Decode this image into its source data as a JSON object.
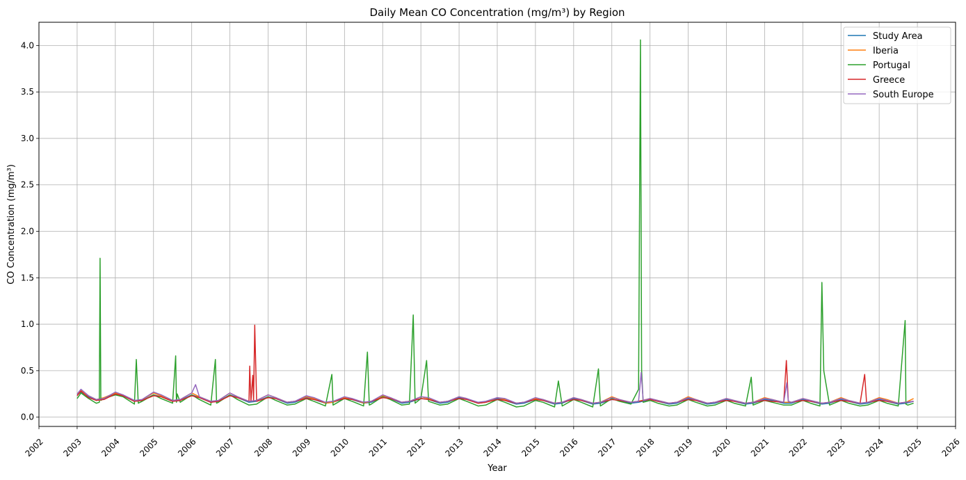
{
  "chart_data": {
    "type": "line",
    "title": "Daily Mean CO Concentration (mg/m³) by Region",
    "xlabel": "Year",
    "ylabel": "CO Concentration (mg/m³)",
    "xlim": [
      2002.0,
      2026.0
    ],
    "ylim": [
      -0.1,
      4.25
    ],
    "xticks": [
      "2002",
      "2003",
      "2004",
      "2005",
      "2006",
      "2007",
      "2008",
      "2009",
      "2010",
      "2011",
      "2012",
      "2013",
      "2014",
      "2015",
      "2016",
      "2017",
      "2018",
      "2019",
      "2020",
      "2021",
      "2022",
      "2023",
      "2024",
      "2025",
      "2026"
    ],
    "yticks": [
      "0.0",
      "0.5",
      "1.0",
      "1.5",
      "2.0",
      "2.5",
      "3.0",
      "3.5",
      "4.0"
    ],
    "grid": true,
    "legend_position": "top-right",
    "series": [
      {
        "name": "Study Area",
        "color": "#1f77b4",
        "x": [
          2003.0,
          2003.1,
          2003.3,
          2003.5,
          2003.7,
          2004.0,
          2004.2,
          2004.5,
          2004.7,
          2005.0,
          2005.2,
          2005.5,
          2005.7,
          2006.0,
          2006.2,
          2006.5,
          2006.7,
          2007.0,
          2007.2,
          2007.5,
          2007.7,
          2008.0,
          2008.2,
          2008.5,
          2008.7,
          2009.0,
          2009.2,
          2009.5,
          2009.7,
          2010.0,
          2010.2,
          2010.5,
          2010.7,
          2011.0,
          2011.2,
          2011.5,
          2011.7,
          2012.0,
          2012.2,
          2012.5,
          2012.7,
          2013.0,
          2013.2,
          2013.5,
          2013.7,
          2014.0,
          2014.2,
          2014.5,
          2014.7,
          2015.0,
          2015.2,
          2015.5,
          2015.7,
          2016.0,
          2016.2,
          2016.5,
          2016.7,
          2017.0,
          2017.2,
          2017.5,
          2017.7,
          2018.0,
          2018.2,
          2018.5,
          2018.7,
          2019.0,
          2019.2,
          2019.5,
          2019.7,
          2020.0,
          2020.2,
          2020.5,
          2020.7,
          2021.0,
          2021.2,
          2021.5,
          2021.7,
          2022.0,
          2022.2,
          2022.5,
          2022.7,
          2023.0,
          2023.2,
          2023.5,
          2023.7,
          2024.0,
          2024.2,
          2024.5,
          2024.7,
          2024.9
        ],
        "y": [
          0.24,
          0.27,
          0.22,
          0.18,
          0.2,
          0.25,
          0.23,
          0.17,
          0.18,
          0.24,
          0.22,
          0.17,
          0.18,
          0.24,
          0.21,
          0.16,
          0.17,
          0.24,
          0.21,
          0.16,
          0.17,
          0.22,
          0.2,
          0.15,
          0.16,
          0.21,
          0.19,
          0.15,
          0.16,
          0.2,
          0.19,
          0.15,
          0.16,
          0.22,
          0.2,
          0.15,
          0.16,
          0.2,
          0.19,
          0.15,
          0.16,
          0.21,
          0.19,
          0.15,
          0.16,
          0.2,
          0.18,
          0.14,
          0.15,
          0.19,
          0.18,
          0.14,
          0.15,
          0.2,
          0.18,
          0.14,
          0.15,
          0.19,
          0.18,
          0.15,
          0.16,
          0.19,
          0.17,
          0.14,
          0.15,
          0.2,
          0.18,
          0.14,
          0.15,
          0.19,
          0.17,
          0.14,
          0.15,
          0.19,
          0.18,
          0.15,
          0.15,
          0.19,
          0.17,
          0.14,
          0.15,
          0.19,
          0.17,
          0.14,
          0.15,
          0.19,
          0.17,
          0.14,
          0.15,
          0.17
        ]
      },
      {
        "name": "Iberia",
        "color": "#ff7f0e",
        "x": [
          2003.0,
          2003.1,
          2003.3,
          2003.5,
          2003.7,
          2004.0,
          2004.2,
          2004.5,
          2004.7,
          2005.0,
          2005.2,
          2005.5,
          2005.7,
          2006.0,
          2006.2,
          2006.5,
          2006.7,
          2007.0,
          2007.2,
          2007.5,
          2007.7,
          2008.0,
          2008.2,
          2008.5,
          2008.7,
          2009.0,
          2009.2,
          2009.5,
          2009.7,
          2010.0,
          2010.2,
          2010.5,
          2010.7,
          2011.0,
          2011.2,
          2011.5,
          2011.7,
          2012.0,
          2012.2,
          2012.5,
          2012.7,
          2013.0,
          2013.2,
          2013.5,
          2013.7,
          2014.0,
          2014.2,
          2014.5,
          2014.7,
          2015.0,
          2015.2,
          2015.5,
          2015.7,
          2016.0,
          2016.2,
          2016.5,
          2016.7,
          2017.0,
          2017.2,
          2017.5,
          2017.7,
          2018.0,
          2018.2,
          2018.5,
          2018.7,
          2019.0,
          2019.2,
          2019.5,
          2019.7,
          2020.0,
          2020.2,
          2020.5,
          2020.7,
          2021.0,
          2021.2,
          2021.5,
          2021.7,
          2022.0,
          2022.2,
          2022.5,
          2022.7,
          2023.0,
          2023.2,
          2023.5,
          2023.7,
          2024.0,
          2024.2,
          2024.5,
          2024.7,
          2024.9
        ],
        "y": [
          0.25,
          0.29,
          0.23,
          0.19,
          0.21,
          0.26,
          0.24,
          0.17,
          0.19,
          0.26,
          0.23,
          0.18,
          0.19,
          0.26,
          0.22,
          0.17,
          0.18,
          0.26,
          0.22,
          0.17,
          0.18,
          0.24,
          0.21,
          0.16,
          0.17,
          0.22,
          0.2,
          0.15,
          0.16,
          0.21,
          0.2,
          0.15,
          0.17,
          0.23,
          0.21,
          0.16,
          0.17,
          0.22,
          0.2,
          0.16,
          0.17,
          0.22,
          0.2,
          0.15,
          0.16,
          0.21,
          0.19,
          0.15,
          0.16,
          0.2,
          0.19,
          0.15,
          0.16,
          0.21,
          0.19,
          0.15,
          0.16,
          0.22,
          0.19,
          0.16,
          0.17,
          0.2,
          0.18,
          0.15,
          0.16,
          0.22,
          0.19,
          0.15,
          0.16,
          0.2,
          0.18,
          0.15,
          0.16,
          0.21,
          0.19,
          0.16,
          0.16,
          0.2,
          0.18,
          0.15,
          0.16,
          0.21,
          0.18,
          0.15,
          0.16,
          0.21,
          0.19,
          0.15,
          0.16,
          0.2
        ]
      },
      {
        "name": "Portugal",
        "color": "#2ca02c",
        "x": [
          2003.0,
          2003.1,
          2003.3,
          2003.5,
          2003.58,
          2003.6,
          2003.62,
          2003.7,
          2004.0,
          2004.2,
          2004.5,
          2004.55,
          2004.6,
          2004.7,
          2005.0,
          2005.2,
          2005.5,
          2005.58,
          2005.6,
          2005.62,
          2005.7,
          2006.0,
          2006.2,
          2006.5,
          2006.62,
          2006.65,
          2006.7,
          2007.0,
          2007.2,
          2007.5,
          2007.7,
          2008.0,
          2008.2,
          2008.5,
          2008.7,
          2009.0,
          2009.2,
          2009.5,
          2009.67,
          2009.7,
          2010.0,
          2010.2,
          2010.5,
          2010.6,
          2010.65,
          2010.7,
          2011.0,
          2011.2,
          2011.5,
          2011.7,
          2011.8,
          2011.85,
          2012.0,
          2012.15,
          2012.2,
          2012.5,
          2012.7,
          2013.0,
          2013.2,
          2013.5,
          2013.7,
          2014.0,
          2014.2,
          2014.5,
          2014.7,
          2015.0,
          2015.2,
          2015.5,
          2015.6,
          2015.7,
          2016.0,
          2016.2,
          2016.5,
          2016.65,
          2016.7,
          2017.0,
          2017.2,
          2017.5,
          2017.7,
          2017.75,
          2017.78,
          2017.82,
          2018.0,
          2018.2,
          2018.5,
          2018.7,
          2019.0,
          2019.2,
          2019.5,
          2019.7,
          2020.0,
          2020.2,
          2020.5,
          2020.65,
          2020.7,
          2021.0,
          2021.2,
          2021.5,
          2021.7,
          2022.0,
          2022.2,
          2022.45,
          2022.5,
          2022.55,
          2022.7,
          2023.0,
          2023.2,
          2023.5,
          2023.7,
          2024.0,
          2024.2,
          2024.5,
          2024.68,
          2024.7,
          2024.75,
          2024.9
        ],
        "y": [
          0.2,
          0.26,
          0.2,
          0.15,
          0.16,
          1.71,
          0.18,
          0.2,
          0.24,
          0.22,
          0.14,
          0.62,
          0.15,
          0.17,
          0.24,
          0.2,
          0.15,
          0.66,
          0.16,
          0.25,
          0.16,
          0.24,
          0.19,
          0.13,
          0.62,
          0.15,
          0.16,
          0.24,
          0.19,
          0.13,
          0.14,
          0.22,
          0.18,
          0.13,
          0.14,
          0.2,
          0.17,
          0.12,
          0.46,
          0.13,
          0.2,
          0.17,
          0.12,
          0.7,
          0.13,
          0.14,
          0.22,
          0.19,
          0.13,
          0.14,
          1.1,
          0.15,
          0.2,
          0.61,
          0.17,
          0.13,
          0.14,
          0.2,
          0.17,
          0.12,
          0.13,
          0.19,
          0.16,
          0.11,
          0.12,
          0.18,
          0.16,
          0.11,
          0.39,
          0.12,
          0.19,
          0.16,
          0.11,
          0.52,
          0.12,
          0.2,
          0.17,
          0.14,
          0.3,
          4.06,
          0.5,
          0.16,
          0.18,
          0.15,
          0.12,
          0.13,
          0.19,
          0.16,
          0.12,
          0.13,
          0.18,
          0.15,
          0.12,
          0.43,
          0.13,
          0.18,
          0.16,
          0.13,
          0.13,
          0.18,
          0.15,
          0.12,
          1.45,
          0.5,
          0.13,
          0.18,
          0.15,
          0.12,
          0.13,
          0.18,
          0.15,
          0.12,
          1.04,
          0.14,
          0.13,
          0.15
        ]
      },
      {
        "name": "Greece",
        "color": "#d62728",
        "x": [
          2003.0,
          2003.1,
          2003.3,
          2003.5,
          2003.7,
          2004.0,
          2004.2,
          2004.5,
          2004.7,
          2005.0,
          2005.2,
          2005.5,
          2005.7,
          2006.0,
          2006.2,
          2006.5,
          2006.7,
          2007.0,
          2007.2,
          2007.5,
          2007.52,
          2007.55,
          2007.6,
          2007.62,
          2007.65,
          2007.7,
          2008.0,
          2008.2,
          2008.5,
          2008.7,
          2009.0,
          2009.2,
          2009.5,
          2009.7,
          2010.0,
          2010.2,
          2010.5,
          2010.7,
          2011.0,
          2011.2,
          2011.5,
          2011.7,
          2012.0,
          2012.2,
          2012.5,
          2012.7,
          2013.0,
          2013.2,
          2013.5,
          2013.7,
          2014.0,
          2014.2,
          2014.5,
          2014.7,
          2015.0,
          2015.2,
          2015.5,
          2015.7,
          2016.0,
          2016.2,
          2016.5,
          2016.7,
          2017.0,
          2017.2,
          2017.5,
          2017.7,
          2018.0,
          2018.2,
          2018.5,
          2018.7,
          2019.0,
          2019.2,
          2019.5,
          2019.7,
          2020.0,
          2020.2,
          2020.5,
          2020.7,
          2021.0,
          2021.2,
          2021.5,
          2021.57,
          2021.62,
          2021.7,
          2022.0,
          2022.2,
          2022.5,
          2022.7,
          2023.0,
          2023.2,
          2023.5,
          2023.62,
          2023.67,
          2023.7,
          2024.0,
          2024.2,
          2024.5,
          2024.7,
          2024.9
        ],
        "y": [
          0.23,
          0.28,
          0.21,
          0.18,
          0.19,
          0.25,
          0.23,
          0.17,
          0.18,
          0.23,
          0.22,
          0.17,
          0.18,
          0.23,
          0.21,
          0.16,
          0.17,
          0.23,
          0.21,
          0.17,
          0.55,
          0.17,
          0.45,
          0.17,
          0.99,
          0.17,
          0.21,
          0.2,
          0.16,
          0.17,
          0.2,
          0.19,
          0.16,
          0.17,
          0.2,
          0.19,
          0.16,
          0.17,
          0.21,
          0.2,
          0.16,
          0.17,
          0.2,
          0.19,
          0.16,
          0.17,
          0.2,
          0.19,
          0.15,
          0.16,
          0.19,
          0.18,
          0.15,
          0.16,
          0.19,
          0.18,
          0.15,
          0.16,
          0.19,
          0.18,
          0.15,
          0.16,
          0.19,
          0.18,
          0.16,
          0.17,
          0.19,
          0.17,
          0.15,
          0.16,
          0.19,
          0.18,
          0.15,
          0.16,
          0.18,
          0.17,
          0.15,
          0.16,
          0.18,
          0.17,
          0.16,
          0.61,
          0.17,
          0.16,
          0.18,
          0.17,
          0.15,
          0.16,
          0.18,
          0.17,
          0.15,
          0.46,
          0.16,
          0.16,
          0.18,
          0.17,
          0.15,
          0.16,
          0.17
        ]
      },
      {
        "name": "South Europe",
        "color": "#9467bd",
        "x": [
          2003.0,
          2003.1,
          2003.3,
          2003.5,
          2003.7,
          2004.0,
          2004.2,
          2004.5,
          2004.7,
          2005.0,
          2005.2,
          2005.5,
          2005.7,
          2006.0,
          2006.1,
          2006.2,
          2006.5,
          2006.7,
          2007.0,
          2007.2,
          2007.5,
          2007.7,
          2008.0,
          2008.2,
          2008.5,
          2008.7,
          2009.0,
          2009.2,
          2009.5,
          2009.7,
          2010.0,
          2010.2,
          2010.5,
          2010.7,
          2011.0,
          2011.2,
          2011.5,
          2011.7,
          2012.0,
          2012.2,
          2012.5,
          2012.7,
          2013.0,
          2013.2,
          2013.5,
          2013.7,
          2014.0,
          2014.2,
          2014.5,
          2014.7,
          2015.0,
          2015.2,
          2015.5,
          2015.7,
          2016.0,
          2016.2,
          2016.5,
          2016.7,
          2017.0,
          2017.2,
          2017.5,
          2017.7,
          2017.77,
          2017.82,
          2018.0,
          2018.2,
          2018.5,
          2018.7,
          2019.0,
          2019.2,
          2019.5,
          2019.7,
          2020.0,
          2020.2,
          2020.5,
          2020.7,
          2021.0,
          2021.2,
          2021.5,
          2021.58,
          2021.62,
          2021.7,
          2022.0,
          2022.2,
          2022.5,
          2022.7,
          2023.0,
          2023.2,
          2023.5,
          2023.7,
          2024.0,
          2024.2,
          2024.5,
          2024.7,
          2024.9
        ],
        "y": [
          0.25,
          0.3,
          0.23,
          0.19,
          0.2,
          0.27,
          0.24,
          0.18,
          0.19,
          0.27,
          0.24,
          0.18,
          0.19,
          0.26,
          0.35,
          0.22,
          0.17,
          0.18,
          0.26,
          0.22,
          0.17,
          0.18,
          0.24,
          0.21,
          0.16,
          0.17,
          0.23,
          0.21,
          0.16,
          0.17,
          0.22,
          0.2,
          0.16,
          0.17,
          0.24,
          0.21,
          0.16,
          0.17,
          0.22,
          0.21,
          0.16,
          0.17,
          0.22,
          0.2,
          0.16,
          0.17,
          0.21,
          0.2,
          0.15,
          0.16,
          0.21,
          0.19,
          0.15,
          0.16,
          0.21,
          0.19,
          0.15,
          0.16,
          0.21,
          0.19,
          0.16,
          0.17,
          0.48,
          0.18,
          0.2,
          0.18,
          0.15,
          0.16,
          0.21,
          0.19,
          0.15,
          0.16,
          0.2,
          0.18,
          0.15,
          0.16,
          0.2,
          0.19,
          0.16,
          0.37,
          0.17,
          0.16,
          0.2,
          0.18,
          0.15,
          0.16,
          0.2,
          0.18,
          0.15,
          0.16,
          0.2,
          0.18,
          0.15,
          0.16,
          0.17
        ]
      }
    ]
  }
}
